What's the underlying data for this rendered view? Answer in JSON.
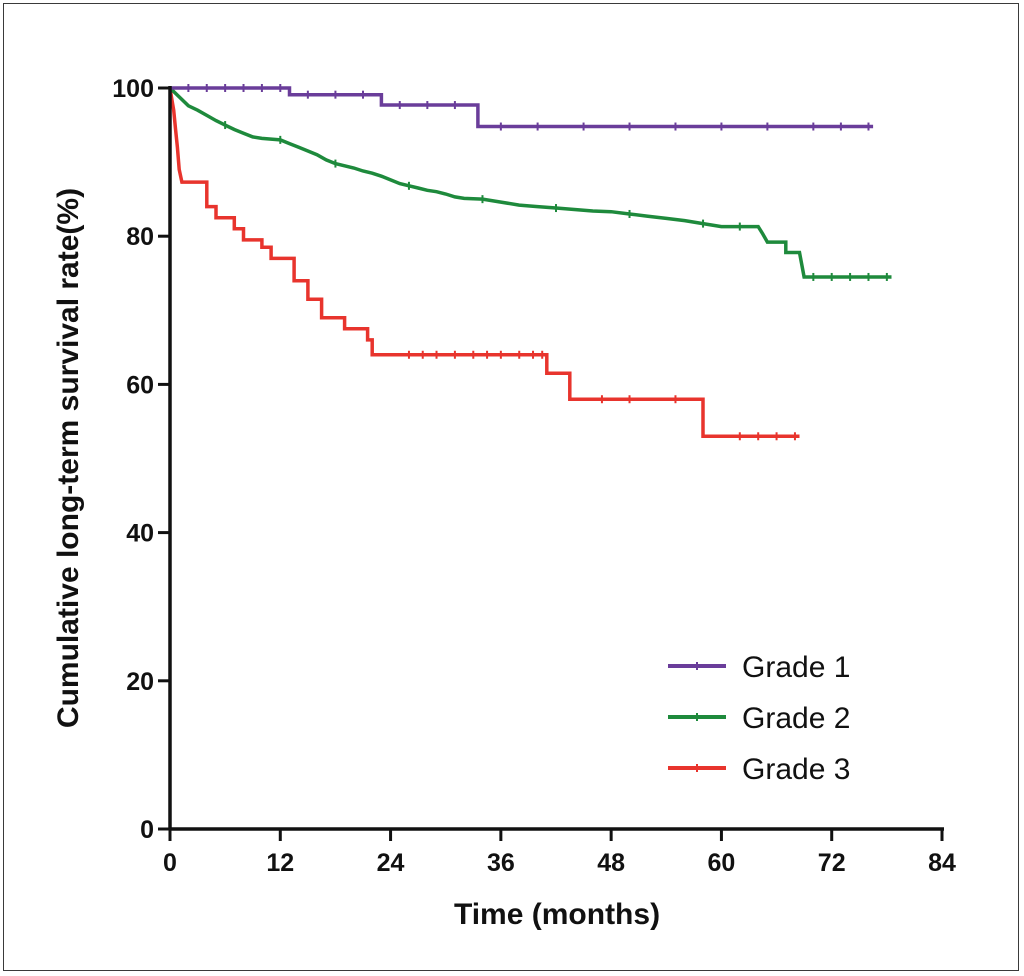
{
  "chart_data": {
    "type": "line",
    "step": true,
    "xlabel": "Time (months)",
    "ylabel": "Cumulative long-term survival rate(%)",
    "xlim": [
      0,
      84
    ],
    "ylim": [
      0,
      100
    ],
    "xticks": [
      0,
      12,
      24,
      36,
      48,
      60,
      72,
      84
    ],
    "yticks": [
      0,
      20,
      40,
      60,
      80,
      100
    ],
    "grid": false,
    "legend_position": "bottom-right",
    "series": [
      {
        "name": "Grade 3",
        "color": "#e8342d",
        "points": [
          [
            0,
            100
          ],
          [
            0.2,
            98.5
          ],
          [
            0.4,
            97
          ],
          [
            0.6,
            94.5
          ],
          [
            0.8,
            92
          ],
          [
            1,
            89
          ],
          [
            1.3,
            87.3
          ],
          [
            4,
            87.3
          ],
          [
            4,
            84
          ],
          [
            5,
            84
          ],
          [
            5,
            82.5
          ],
          [
            7,
            82.5
          ],
          [
            7,
            81
          ],
          [
            8,
            81
          ],
          [
            8,
            79.5
          ],
          [
            10,
            79.5
          ],
          [
            10,
            78.5
          ],
          [
            11,
            78.5
          ],
          [
            11,
            77
          ],
          [
            13.5,
            77
          ],
          [
            13.5,
            74
          ],
          [
            15,
            74
          ],
          [
            15,
            71.5
          ],
          [
            16.5,
            71.5
          ],
          [
            16.5,
            69
          ],
          [
            19,
            69
          ],
          [
            19,
            67.5
          ],
          [
            21.5,
            67.5
          ],
          [
            21.5,
            66
          ],
          [
            22,
            66
          ],
          [
            22,
            64
          ],
          [
            41,
            64
          ],
          [
            41,
            61.5
          ],
          [
            43.5,
            61.5
          ],
          [
            43.5,
            58
          ],
          [
            58,
            58
          ],
          [
            58,
            53
          ],
          [
            68.5,
            53
          ]
        ],
        "censor_x": [
          26,
          27.5,
          29,
          31,
          33,
          34.5,
          36,
          38,
          39.5,
          40.5,
          47,
          50,
          55,
          62,
          64,
          66,
          68
        ]
      },
      {
        "name": "Grade 2",
        "color": "#1e8a3c",
        "points": [
          [
            0,
            100
          ],
          [
            1,
            98.8
          ],
          [
            2,
            97.6
          ],
          [
            3,
            97
          ],
          [
            4,
            96.3
          ],
          [
            5,
            95.6
          ],
          [
            6,
            95
          ],
          [
            7,
            94.4
          ],
          [
            8,
            93.9
          ],
          [
            9,
            93.4
          ],
          [
            10,
            93.2
          ],
          [
            12,
            93
          ],
          [
            13,
            92.5
          ],
          [
            14,
            92
          ],
          [
            15,
            91.5
          ],
          [
            16,
            91
          ],
          [
            17,
            90.3
          ],
          [
            18,
            89.8
          ],
          [
            19,
            89.5
          ],
          [
            20,
            89.2
          ],
          [
            21,
            88.8
          ],
          [
            22,
            88.5
          ],
          [
            23,
            88.1
          ],
          [
            24,
            87.6
          ],
          [
            25,
            87.1
          ],
          [
            26,
            86.8
          ],
          [
            27,
            86.5
          ],
          [
            28,
            86.2
          ],
          [
            29,
            86
          ],
          [
            30,
            85.7
          ],
          [
            31,
            85.3
          ],
          [
            32,
            85.1
          ],
          [
            34,
            85
          ],
          [
            36,
            84.6
          ],
          [
            38,
            84.2
          ],
          [
            40,
            84
          ],
          [
            42,
            83.8
          ],
          [
            44,
            83.6
          ],
          [
            46,
            83.4
          ],
          [
            48,
            83.3
          ],
          [
            50,
            83
          ],
          [
            52,
            82.7
          ],
          [
            54,
            82.4
          ],
          [
            56,
            82.1
          ],
          [
            58,
            81.7
          ],
          [
            60,
            81.3
          ],
          [
            64,
            81.3
          ],
          [
            64.5,
            80.3
          ],
          [
            65,
            79.2
          ],
          [
            67,
            79.2
          ],
          [
            67,
            77.8
          ],
          [
            68.5,
            77.8
          ],
          [
            69,
            74.5
          ],
          [
            78.5,
            74.5
          ]
        ],
        "censor_x": [
          6,
          12,
          18,
          26,
          34,
          42,
          50,
          58,
          62,
          70,
          72,
          74,
          76,
          78
        ]
      },
      {
        "name": "Grade 1",
        "color": "#6a3d9a",
        "points": [
          [
            0,
            100
          ],
          [
            13,
            100
          ],
          [
            13,
            99.1
          ],
          [
            23,
            99.1
          ],
          [
            23,
            97.7
          ],
          [
            33.5,
            97.7
          ],
          [
            33.5,
            94.8
          ],
          [
            76.5,
            94.8
          ]
        ],
        "censor_x": [
          2,
          4,
          6,
          8,
          10,
          12,
          15,
          18,
          21,
          25,
          28,
          31,
          36,
          40,
          45,
          50,
          55,
          60,
          65,
          70,
          73,
          76
        ]
      }
    ]
  }
}
